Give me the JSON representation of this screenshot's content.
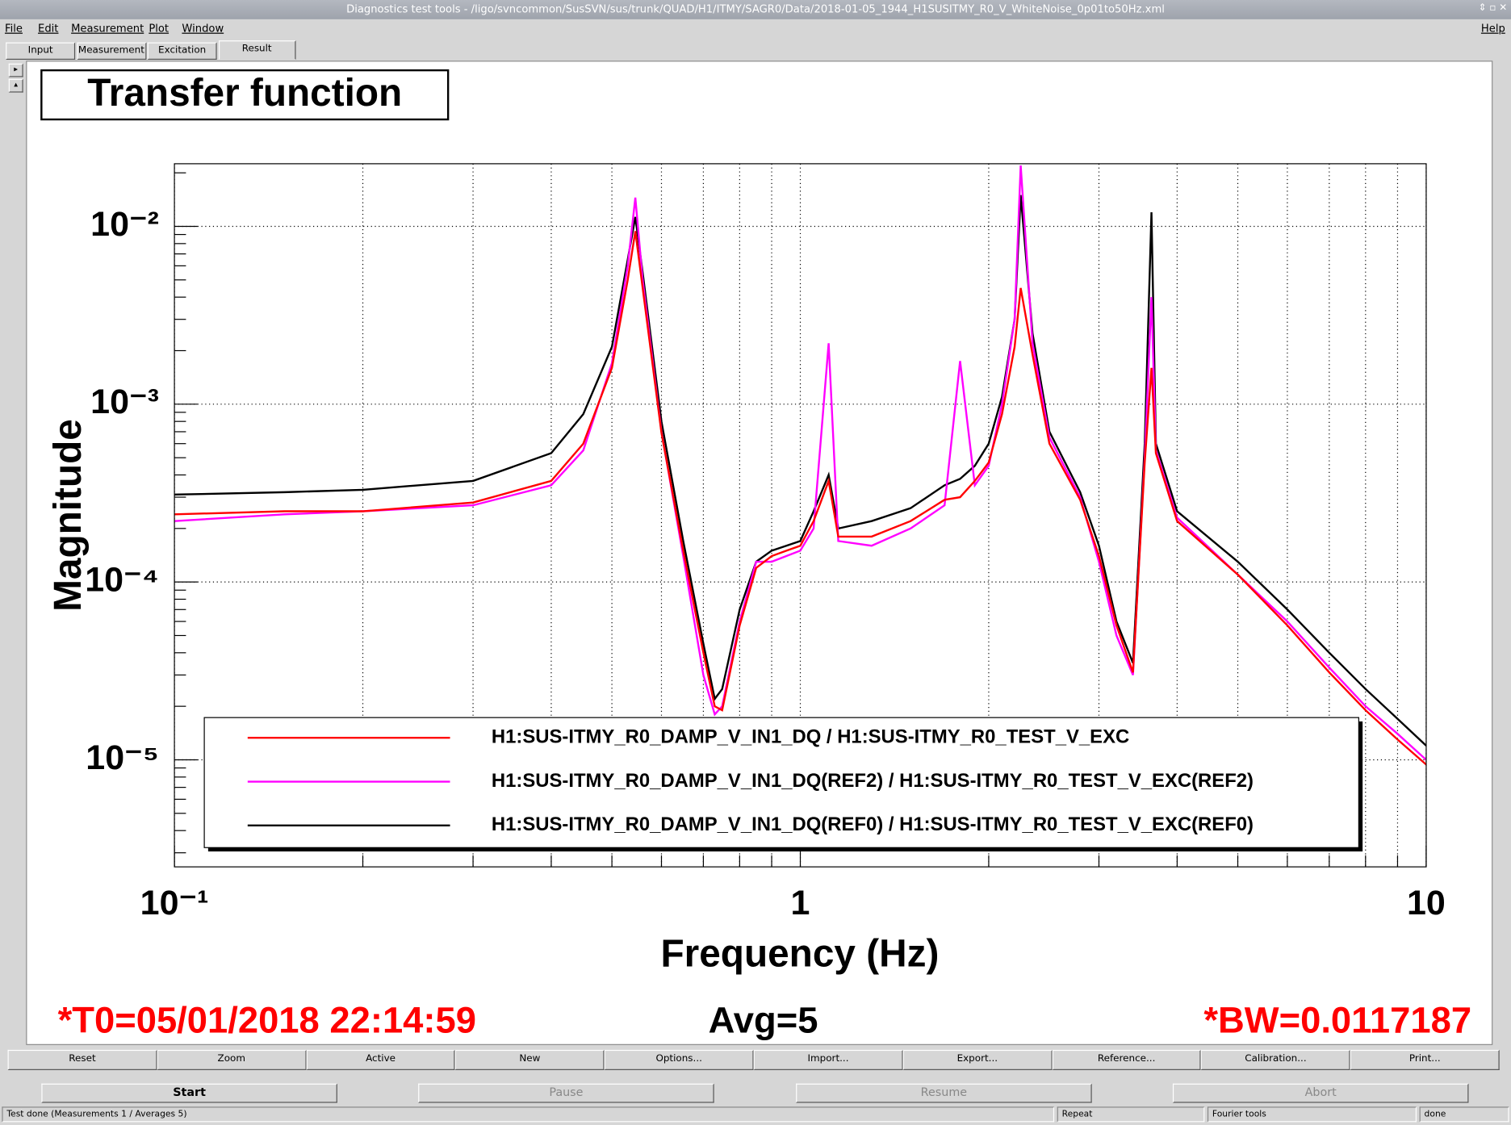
{
  "window": {
    "title": "Diagnostics test tools - /ligo/svncommon/SusSVN/sus/trunk/QUAD/H1/ITMY/SAGR0/Data/2018-01-05_1944_H1SUSITMY_R0_V_WhiteNoise_0p01to50Hz.xml"
  },
  "menu": [
    "File",
    "Edit",
    "Measurement",
    "Plot",
    "Window"
  ],
  "help": "Help",
  "tabs": [
    "Input",
    "Measurement",
    "Excitation",
    "Result"
  ],
  "chart_data": {
    "type": "line",
    "title": "Transfer function",
    "xlabel": "Frequency (Hz)",
    "ylabel": "Magnitude",
    "log_x": true,
    "log_y": true,
    "grid": true,
    "legend": "bottom",
    "xlim": [
      0.1,
      10
    ],
    "ylim": [
      2.5e-06,
      0.0225
    ],
    "xticks": [
      {
        "value": 0.1,
        "label": "10⁻¹"
      },
      1,
      10
    ],
    "xminorticks": [
      0.2,
      0.3,
      0.4,
      0.5,
      0.6,
      0.7,
      0.8,
      0.9,
      2,
      3,
      4,
      5,
      6,
      7,
      8,
      9
    ],
    "yticks": [
      {
        "value": 1e-05,
        "label": "10⁻⁵"
      },
      {
        "value": 0.0001,
        "label": "10⁻⁴"
      },
      {
        "value": 0.001,
        "label": "10⁻³"
      },
      {
        "value": 0.01,
        "label": "10⁻²"
      }
    ],
    "yminorticks": [
      3e-06,
      4e-06,
      5e-06,
      6e-06,
      7e-06,
      8e-06,
      9e-06,
      2e-05,
      3e-05,
      4e-05,
      5e-05,
      6e-05,
      7e-05,
      8e-05,
      9e-05,
      0.0002,
      0.0003,
      0.0004,
      0.0005,
      0.0006,
      0.0007,
      0.0008,
      0.0009,
      0.002,
      0.003,
      0.004,
      0.005,
      0.006,
      0.007,
      0.008,
      0.009,
      0.02
    ],
    "x": [
      0.1,
      0.15,
      0.2,
      0.3,
      0.4,
      0.45,
      0.5,
      0.53,
      0.545,
      0.56,
      0.6,
      0.65,
      0.7,
      0.73,
      0.75,
      0.8,
      0.85,
      0.9,
      0.95,
      1.0,
      1.05,
      1.11,
      1.15,
      1.3,
      1.5,
      1.7,
      1.8,
      1.9,
      2.0,
      2.1,
      2.2,
      2.25,
      2.35,
      2.5,
      2.8,
      3.0,
      3.2,
      3.4,
      3.55,
      3.64,
      3.7,
      4.0,
      5.0,
      6.0,
      7.0,
      8.0,
      9.0,
      10
    ],
    "series": [
      {
        "name": "H1:SUS-ITMY_R0_DAMP_V_IN1_DQ / H1:SUS-ITMY_R0_TEST_V_EXC",
        "color": "#ff0000",
        "values": [
          0.00024,
          0.00025,
          0.00025,
          0.00028,
          0.00037,
          0.0006,
          0.0016,
          0.005,
          0.0094,
          0.0045,
          0.00069,
          0.00015,
          4e-05,
          2e-05,
          1.9e-05,
          5.7e-05,
          0.00012,
          0.00014,
          0.00015,
          0.00016,
          0.00022,
          0.00037,
          0.00018,
          0.00018,
          0.00022,
          0.00029,
          0.0003,
          0.00037,
          0.00047,
          0.00088,
          0.0021,
          0.0045,
          0.0019,
          0.0006,
          0.00029,
          0.00014,
          5.7e-05,
          3.1e-05,
          0.00047,
          0.0016,
          0.00053,
          0.00022,
          0.00011,
          5.7e-05,
          3.1e-05,
          1.9e-05,
          1.3e-05,
          9.4e-06
        ]
      },
      {
        "name": "H1:SUS-ITMY_R0_DAMP_V_IN1_DQ(REF2) / H1:SUS-ITMY_R0_TEST_V_EXC(REF2)",
        "color": "#ff00ff",
        "values": [
          0.00022,
          0.00024,
          0.00025,
          0.00027,
          0.00035,
          0.00055,
          0.0017,
          0.006,
          0.0145,
          0.005,
          0.0007,
          0.00014,
          3e-05,
          1.8e-05,
          2e-05,
          6e-05,
          0.00013,
          0.00013,
          0.00014,
          0.00015,
          0.0002,
          0.0022,
          0.00017,
          0.00016,
          0.0002,
          0.00027,
          0.00175,
          0.00035,
          0.00045,
          0.001,
          0.003,
          0.022,
          0.0022,
          0.00065,
          0.0003,
          0.00013,
          5e-05,
          3e-05,
          0.0005,
          0.004,
          0.00055,
          0.00023,
          0.00011,
          6e-05,
          3.3e-05,
          2e-05,
          1.4e-05,
          1e-05
        ]
      },
      {
        "name": "H1:SUS-ITMY_R0_DAMP_V_IN1_DQ(REF0) / H1:SUS-ITMY_R0_TEST_V_EXC(REF0)",
        "color": "#000000",
        "values": [
          0.00031,
          0.00032,
          0.00033,
          0.00037,
          0.00053,
          0.00088,
          0.0021,
          0.0065,
          0.0113,
          0.0055,
          0.0008,
          0.00017,
          4.5e-05,
          2.2e-05,
          2.5e-05,
          7e-05,
          0.00013,
          0.00015,
          0.00016,
          0.00017,
          0.00025,
          0.0004,
          0.0002,
          0.00022,
          0.00026,
          0.00035,
          0.00038,
          0.00045,
          0.0006,
          0.0011,
          0.003,
          0.015,
          0.0025,
          0.0007,
          0.00032,
          0.00016,
          6e-05,
          3.5e-05,
          0.0006,
          0.012,
          0.0006,
          0.00025,
          0.00013,
          7e-05,
          4e-05,
          2.5e-05,
          1.7e-05,
          1.2e-05
        ]
      }
    ],
    "annotations": [
      {
        "text": "*T0=05/01/2018 22:14:59",
        "color": "#ff0000"
      },
      {
        "text": "Avg=5",
        "color": "#000000"
      },
      {
        "text": "*BW=0.0117187",
        "color": "#ff0000"
      }
    ]
  },
  "buttons": [
    "Reset",
    "Zoom",
    "Active",
    "New",
    "Options...",
    "Import...",
    "Export...",
    "Reference...",
    "Calibration...",
    "Print..."
  ],
  "controls": [
    "Start",
    "Pause",
    "Resume",
    "Abort"
  ],
  "status": [
    "Test done (Measurements 1 / Averages 5)",
    "Repeat",
    "Fourier tools",
    "done"
  ]
}
